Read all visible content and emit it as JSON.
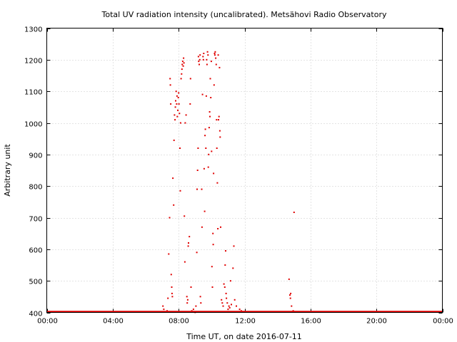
{
  "chart_data": {
    "type": "scatter",
    "title": "Total UV radiation intensity (uncalibrated). Metsähovi Radio Observatory",
    "xlabel": "Time UT, on date 2016-07-11",
    "ylabel": "Arbitrary unit",
    "xlim": [
      0,
      24
    ],
    "ylim": [
      400,
      1300
    ],
    "x_ticks": [
      0,
      4,
      8,
      12,
      16,
      20,
      24
    ],
    "x_tick_labels": [
      "00:00",
      "04:00",
      "08:00",
      "12:00",
      "16:00",
      "20:00",
      "00:00"
    ],
    "y_ticks": [
      400,
      500,
      600,
      700,
      800,
      900,
      1000,
      1100,
      1200,
      1300
    ],
    "y_tick_labels": [
      "400",
      "500",
      "600",
      "700",
      "800",
      "900",
      "1000",
      "1100",
      "1200",
      "1300"
    ],
    "grid": true,
    "series": [
      {
        "color": "#e00000",
        "points": [
          [
            7.05,
            420
          ],
          [
            7.1,
            410
          ],
          [
            7.3,
            405
          ],
          [
            7.35,
            445
          ],
          [
            7.4,
            585
          ],
          [
            7.45,
            700
          ],
          [
            7.48,
            1140
          ],
          [
            7.5,
            1120
          ],
          [
            7.52,
            1060
          ],
          [
            7.55,
            520
          ],
          [
            7.58,
            480
          ],
          [
            7.6,
            460
          ],
          [
            7.62,
            450
          ],
          [
            7.65,
            825
          ],
          [
            7.7,
            740
          ],
          [
            7.72,
            945
          ],
          [
            7.75,
            1025
          ],
          [
            7.78,
            1010
          ],
          [
            7.8,
            1050
          ],
          [
            7.82,
            1070
          ],
          [
            7.85,
            1100
          ],
          [
            7.88,
            1060
          ],
          [
            7.9,
            1085
          ],
          [
            7.92,
            1020
          ],
          [
            7.95,
            1040
          ],
          [
            7.98,
            1080
          ],
          [
            8.0,
            1095
          ],
          [
            8.02,
            1060
          ],
          [
            8.05,
            1030
          ],
          [
            8.08,
            920
          ],
          [
            8.1,
            785
          ],
          [
            8.12,
            1000
          ],
          [
            8.15,
            1140
          ],
          [
            8.18,
            1155
          ],
          [
            8.2,
            1170
          ],
          [
            8.22,
            1185
          ],
          [
            8.25,
            1195
          ],
          [
            8.28,
            1180
          ],
          [
            8.3,
            1205
          ],
          [
            8.32,
            1190
          ],
          [
            8.35,
            705
          ],
          [
            8.38,
            560
          ],
          [
            8.4,
            1000
          ],
          [
            8.45,
            1025
          ],
          [
            8.5,
            450
          ],
          [
            8.52,
            430
          ],
          [
            8.55,
            440
          ],
          [
            8.58,
            610
          ],
          [
            8.6,
            620
          ],
          [
            8.65,
            640
          ],
          [
            8.7,
            1060
          ],
          [
            8.72,
            1140
          ],
          [
            8.75,
            480
          ],
          [
            8.8,
            405
          ],
          [
            8.9,
            410
          ],
          [
            9.0,
            400
          ],
          [
            9.05,
            420
          ],
          [
            9.1,
            590
          ],
          [
            9.12,
            790
          ],
          [
            9.15,
            850
          ],
          [
            9.18,
            920
          ],
          [
            9.2,
            1210
          ],
          [
            9.22,
            1195
          ],
          [
            9.25,
            1185
          ],
          [
            9.28,
            1200
          ],
          [
            9.3,
            1215
          ],
          [
            9.32,
            450
          ],
          [
            9.35,
            430
          ],
          [
            9.4,
            790
          ],
          [
            9.42,
            670
          ],
          [
            9.45,
            1090
          ],
          [
            9.48,
            1210
          ],
          [
            9.5,
            1200
          ],
          [
            9.52,
            1220
          ],
          [
            9.55,
            855
          ],
          [
            9.58,
            720
          ],
          [
            9.6,
            960
          ],
          [
            9.62,
            980
          ],
          [
            9.65,
            920
          ],
          [
            9.68,
            1085
          ],
          [
            9.7,
            1200
          ],
          [
            9.72,
            1185
          ],
          [
            9.75,
            1225
          ],
          [
            9.78,
            1215
          ],
          [
            9.8,
            860
          ],
          [
            9.82,
            900
          ],
          [
            9.85,
            985
          ],
          [
            9.88,
            1035
          ],
          [
            9.9,
            1020
          ],
          [
            9.92,
            1140
          ],
          [
            9.95,
            1080
          ],
          [
            9.98,
            1195
          ],
          [
            10.0,
            910
          ],
          [
            10.02,
            545
          ],
          [
            10.05,
            480
          ],
          [
            10.08,
            650
          ],
          [
            10.1,
            615
          ],
          [
            10.12,
            840
          ],
          [
            10.15,
            1120
          ],
          [
            10.18,
            1220
          ],
          [
            10.2,
            1215
          ],
          [
            10.22,
            1225
          ],
          [
            10.25,
            1205
          ],
          [
            10.28,
            1185
          ],
          [
            10.3,
            1010
          ],
          [
            10.32,
            920
          ],
          [
            10.35,
            810
          ],
          [
            10.38,
            665
          ],
          [
            10.4,
            1215
          ],
          [
            10.42,
            1010
          ],
          [
            10.45,
            1020
          ],
          [
            10.48,
            1175
          ],
          [
            10.5,
            975
          ],
          [
            10.52,
            955
          ],
          [
            10.55,
            670
          ],
          [
            10.6,
            440
          ],
          [
            10.65,
            430
          ],
          [
            10.7,
            420
          ],
          [
            10.75,
            490
          ],
          [
            10.8,
            480
          ],
          [
            10.82,
            550
          ],
          [
            10.85,
            595
          ],
          [
            10.88,
            460
          ],
          [
            10.9,
            445
          ],
          [
            10.95,
            430
          ],
          [
            11.0,
            410
          ],
          [
            11.05,
            420
          ],
          [
            11.1,
            415
          ],
          [
            11.15,
            500
          ],
          [
            11.2,
            425
          ],
          [
            11.3,
            540
          ],
          [
            11.35,
            610
          ],
          [
            11.4,
            440
          ],
          [
            11.5,
            420
          ],
          [
            11.7,
            410
          ],
          [
            11.8,
            405
          ],
          [
            12.0,
            402
          ],
          [
            14.7,
            505
          ],
          [
            14.75,
            455
          ],
          [
            14.78,
            445
          ],
          [
            14.8,
            460
          ],
          [
            14.85,
            420
          ],
          [
            14.95,
            405
          ],
          [
            15.0,
            717
          ]
        ]
      }
    ]
  }
}
